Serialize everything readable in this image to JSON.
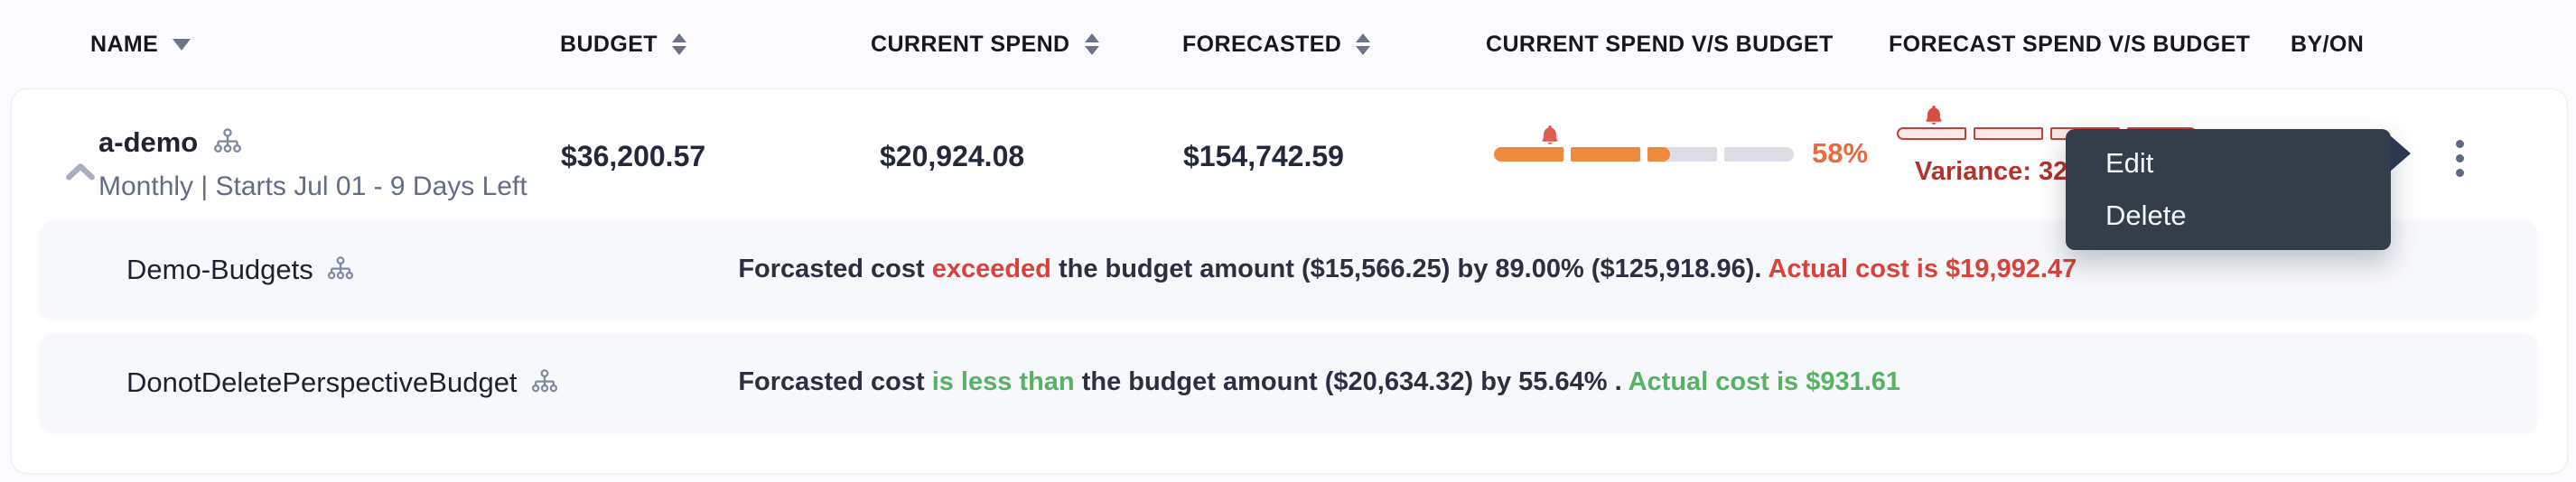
{
  "table": {
    "columns": [
      {
        "label": "NAME",
        "sort": "desc"
      },
      {
        "label": "BUDGET",
        "sort": "both"
      },
      {
        "label": "CURRENT SPEND",
        "sort": "both"
      },
      {
        "label": "FORECASTED",
        "sort": "both"
      },
      {
        "label": "CURRENT SPEND V/S BUDGET",
        "sort": "none"
      },
      {
        "label": "FORECAST SPEND V/S BUDGET",
        "sort": "none"
      },
      {
        "label": "BY/ON",
        "sort": "none"
      }
    ],
    "parent_row": {
      "name": "a-demo",
      "schedule": "Monthly | Starts Jul 01 - 9 Days Left",
      "budget": "$36,200.57",
      "current_spend": "$20,924.08",
      "forecasted": "$154,742.59",
      "current_vs_budget": {
        "percent_label": "58%",
        "fill_percent": 58,
        "segments": 4,
        "alert_marker_percent": 18.7
      },
      "forecast_vs_budget": {
        "variance_label": "Variance: 327% |",
        "over_budget": true,
        "segments": 4,
        "alert_marker_percent": 12.3
      }
    },
    "child_rows": [
      {
        "name": "Demo-Budgets",
        "status": "over",
        "message": {
          "lead": "Forcasted cost ",
          "verdict": "exceeded",
          "middle": " the budget amount ($15,566.25) by 89.00% ($125,918.96). ",
          "actual": "Actual cost is $19,992.47"
        }
      },
      {
        "name": "DonotDeletePerspectiveBudget",
        "status": "under",
        "message": {
          "lead": "Forcasted cost ",
          "verdict": "is less than",
          "middle": " the budget amount ($20,634.32) by 55.64% . ",
          "actual": "Actual cost is $931.61"
        }
      }
    ]
  },
  "context_menu": {
    "items": [
      {
        "label": "Edit"
      },
      {
        "label": "Delete"
      }
    ]
  },
  "colors": {
    "bar_fill_orange": "#ED8A3D",
    "bar_track_gray": "#DCDDE4",
    "percent_orange": "#EA6A3B",
    "alert_bell_red": "#E25A4E",
    "over_budget_border_red": "#C4413A",
    "over_budget_fill_pink": "#FBE9E8",
    "variance_red": "#B3322B",
    "message_red": "#D8423B",
    "message_green": "#56B365",
    "menu_bg": "#343E4A"
  }
}
